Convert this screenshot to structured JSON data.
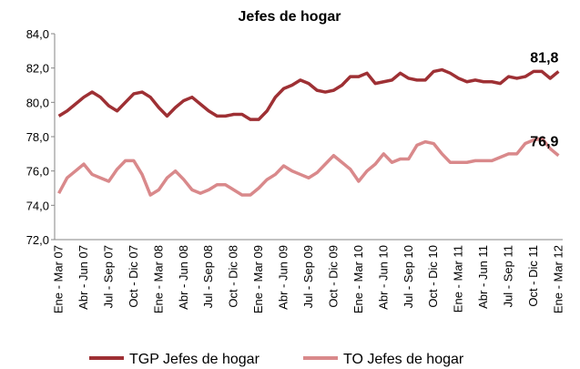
{
  "chart_data": {
    "type": "line",
    "title": "Jefes de hogar",
    "categories": [
      "Ene - Mar 07",
      null,
      null,
      "Abr - Jun 07",
      null,
      null,
      "Jul - Sep 07",
      null,
      null,
      "Oct - Dic 07",
      null,
      null,
      "Ene - Mar 08",
      null,
      null,
      "Abr - Jun 08",
      null,
      null,
      "Jul - Sep 08",
      null,
      null,
      "Oct - Dic 08",
      null,
      null,
      "Ene - Mar 09",
      null,
      null,
      "Abr - Jun 09",
      null,
      null,
      "Jul - Sep 09",
      null,
      null,
      "Oct - Dic 09",
      null,
      null,
      "Ene - Mar 10",
      null,
      null,
      "Abr - Jun 10",
      null,
      null,
      "Jul - Sep 10",
      null,
      null,
      "Oct - Dic 10",
      null,
      null,
      "Ene - Mar 11",
      null,
      null,
      "Abr - Jun 11",
      null,
      null,
      "Jul - Sep 11",
      null,
      null,
      "Oct - Dic 11",
      null,
      null,
      "Ene - Mar 12"
    ],
    "series": [
      {
        "name": "TGP Jefes de hogar",
        "color": "#9e3034",
        "values": [
          79.2,
          79.5,
          79.9,
          80.3,
          80.6,
          80.3,
          79.8,
          79.5,
          80.0,
          80.5,
          80.6,
          80.3,
          79.7,
          79.2,
          79.7,
          80.1,
          80.3,
          79.9,
          79.5,
          79.2,
          79.2,
          79.3,
          79.3,
          79.0,
          79.0,
          79.5,
          80.3,
          80.8,
          81.0,
          81.3,
          81.1,
          80.7,
          80.6,
          80.7,
          81.0,
          81.5,
          81.5,
          81.7,
          81.1,
          81.2,
          81.3,
          81.7,
          81.4,
          81.3,
          81.3,
          81.8,
          81.9,
          81.7,
          81.4,
          81.2,
          81.3,
          81.2,
          81.2,
          81.1,
          81.5,
          81.4,
          81.5,
          81.8,
          81.8,
          81.4,
          81.8
        ],
        "value_labels": {
          "60": "81,8"
        }
      },
      {
        "name": "TO Jefes de hogar",
        "color": "#d9898b",
        "values": [
          74.7,
          75.6,
          76.0,
          76.4,
          75.8,
          75.6,
          75.4,
          76.1,
          76.6,
          76.6,
          75.8,
          74.6,
          74.9,
          75.6,
          76.0,
          75.5,
          74.9,
          74.7,
          74.9,
          75.2,
          75.2,
          74.9,
          74.6,
          74.6,
          75.0,
          75.5,
          75.8,
          76.3,
          76.0,
          75.8,
          75.6,
          75.9,
          76.4,
          76.9,
          76.5,
          76.1,
          75.4,
          76.0,
          76.4,
          77.0,
          76.5,
          76.7,
          76.7,
          77.5,
          77.7,
          77.6,
          77.0,
          76.5,
          76.5,
          76.5,
          76.6,
          76.6,
          76.6,
          76.8,
          77.0,
          77.0,
          77.6,
          77.8,
          77.9,
          77.3,
          76.9
        ],
        "value_labels": {
          "60": "76,9"
        }
      }
    ],
    "ylim": [
      72,
      84
    ],
    "yticks": [
      {
        "value": 72,
        "label": "72,0"
      },
      {
        "value": 74,
        "label": "74,0"
      },
      {
        "value": 76,
        "label": "76,0"
      },
      {
        "value": 78,
        "label": "78,0"
      },
      {
        "value": 80,
        "label": "80,0"
      },
      {
        "value": 82,
        "label": "82,0"
      },
      {
        "value": 84,
        "label": "84,0"
      }
    ],
    "grid": false,
    "legend": "bottom"
  }
}
